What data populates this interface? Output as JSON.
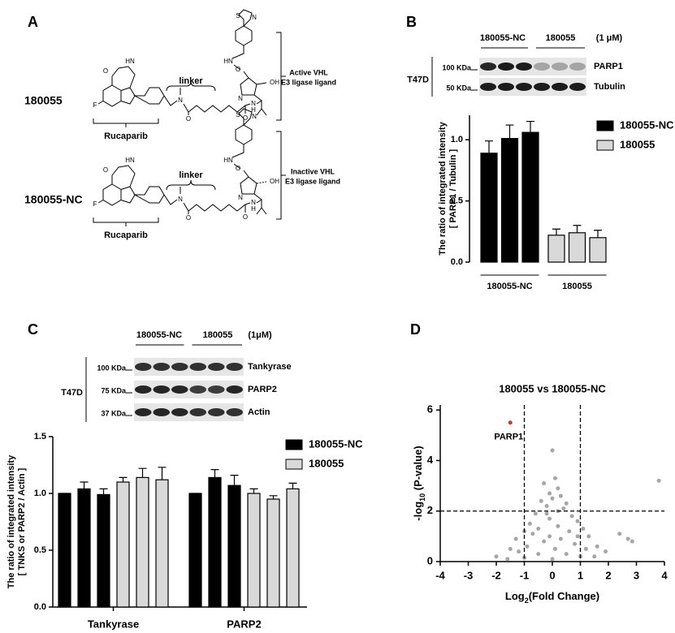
{
  "panels": {
    "a": "A",
    "b": "B",
    "c": "C",
    "d": "D"
  },
  "structures": [
    {
      "compound": "180055",
      "linker": "linker",
      "core": "Rucaparib",
      "ligand": [
        "Active VHL",
        "E3 ligase ligand"
      ]
    },
    {
      "compound": "180055-NC",
      "linker": "linker",
      "core": "Rucaparib",
      "ligand": [
        "Inactive VHL",
        "E3 ligase ligand"
      ]
    }
  ],
  "atoms": [
    "O",
    "HN",
    "F",
    "N",
    "O",
    "O",
    "N",
    "H",
    "N",
    "OH",
    "O",
    "HN",
    "S",
    "N"
  ],
  "blot_b": {
    "headers": [
      "180055-NC",
      "180055",
      "(1 μM)"
    ],
    "cell": "T47D",
    "markers": [
      "100 KDa",
      "50 KDa"
    ],
    "proteins": [
      "PARP1",
      "Tubulin"
    ]
  },
  "blot_c": {
    "headers": [
      "180055-NC",
      "180055",
      "(1μM)"
    ],
    "cell": "T47D",
    "markers": [
      "100 KDa",
      "75 KDa",
      "37 KDa"
    ],
    "proteins": [
      "Tankyrase",
      "PARP2",
      "Actin"
    ]
  },
  "chart_data": [
    {
      "type": "bar",
      "ylabel": [
        "The ratio of  integrated intensity",
        "[ PARP1 / Tubulin ]"
      ],
      "ylim": [
        0,
        1.2
      ],
      "yticks": [
        {
          "value": 0,
          "label": "0.0"
        },
        0.5,
        {
          "value": 1,
          "label": "1.0"
        }
      ],
      "legend": "upper right",
      "series": [
        {
          "name": "180055-NC",
          "color": "#000000",
          "values": [
            0.89,
            1.01,
            1.06
          ],
          "errors": [
            0.1,
            0.11,
            0.09
          ]
        },
        {
          "name": "180055",
          "color": "#d9d9d9",
          "values": [
            0.22,
            0.24,
            0.2
          ],
          "errors": [
            0.05,
            0.06,
            0.06
          ]
        }
      ]
    },
    {
      "type": "bar",
      "ylabel": [
        "The ratio of integrated intensity",
        "[ TNKS or PARP2 / Actin ]"
      ],
      "categories": [
        "Tankyrase",
        "PARP2"
      ],
      "ylim": [
        0,
        1.5
      ],
      "yticks": [
        {
          "value": 0,
          "label": "0.0"
        },
        0.5,
        {
          "value": 1,
          "label": "1.0"
        },
        1.5
      ],
      "legend": "upper right",
      "series": [
        {
          "name": "180055-NC",
          "color": "#000000",
          "values": [
            [
              1.0,
              1.04,
              0.99
            ],
            [
              1.0,
              1.14,
              1.07
            ]
          ],
          "errors": [
            [
              0,
              0.06,
              0.05
            ],
            [
              0,
              0.07,
              0.09
            ]
          ]
        },
        {
          "name": "180055",
          "color": "#d9d9d9",
          "values": [
            [
              1.1,
              1.14,
              1.12
            ],
            [
              1.0,
              0.95,
              1.04
            ]
          ],
          "errors": [
            [
              0.04,
              0.08,
              0.11
            ],
            [
              0.04,
              0.03,
              0.05
            ]
          ]
        }
      ]
    },
    {
      "type": "scatter",
      "title": "180055 vs 180055-NC",
      "xlabel": [
        "Log",
        "2",
        "(Fold Change)"
      ],
      "ylabel": [
        "-log",
        "10",
        " (P-value)"
      ],
      "xlim": [
        -4,
        4
      ],
      "ylim": [
        0,
        6.2
      ],
      "xticks": [
        -4,
        -3,
        -2,
        -1,
        0,
        1,
        2,
        3,
        4
      ],
      "yticks": [
        0,
        2,
        4,
        6
      ],
      "color": "#a6a6a6",
      "x": [
        0,
        -0.3,
        0.1,
        0.2,
        -0.1,
        0.3,
        -0.4,
        0.5,
        0.0,
        -0.2,
        0.4,
        -0.6,
        0.7,
        0.9,
        -0.8,
        1.1,
        -1.0,
        1.3,
        -1.3,
        1.6,
        -1.5,
        1.9,
        -2.0,
        2.7,
        2.85,
        2.4,
        3.8,
        0.2,
        -0.1,
        0.6,
        -0.5,
        0.3,
        -0.3,
        0.8,
        -0.9,
        1.2,
        -1.2,
        0.5,
        -0.5,
        0,
        0.1,
        -0.1,
        1.0,
        -1.0,
        1.5,
        -1.6,
        0.9,
        -0.7,
        0.2,
        -0.2
      ],
      "values": [
        4.4,
        3.1,
        3.3,
        2.9,
        2.7,
        2.6,
        2.4,
        2.3,
        2.5,
        2.2,
        2.1,
        1.9,
        1.8,
        1.6,
        1.5,
        1.3,
        1.2,
        1.0,
        0.9,
        0.6,
        0.5,
        0.4,
        0.2,
        0.9,
        0.8,
        1.1,
        3.2,
        1.4,
        1.7,
        1.2,
        1.3,
        0.9,
        0.8,
        0.7,
        0.6,
        0.5,
        0.4,
        0.3,
        0.3,
        0.1,
        0.5,
        1.0,
        0.2,
        0.15,
        0.2,
        0.1,
        1.0,
        1.1,
        2.0,
        1.9
      ],
      "highlight": {
        "name": "PARP1",
        "x": -1.5,
        "value": 5.5,
        "color": "#c0392b"
      },
      "thresholds": {
        "x": [
          -1,
          1
        ],
        "y": 2
      }
    }
  ]
}
